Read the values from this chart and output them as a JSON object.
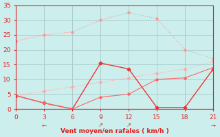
{
  "title": "",
  "xlabel": "Vent moyen/en rafales ( km/h )",
  "ylabel": "",
  "bg_color": "#cceeed",
  "xlim": [
    0,
    21
  ],
  "ylim": [
    0,
    35
  ],
  "xticks": [
    0,
    3,
    6,
    9,
    12,
    15,
    18,
    21
  ],
  "yticks": [
    0,
    5,
    10,
    15,
    20,
    25,
    30,
    35
  ],
  "lines": [
    {
      "x": [
        0,
        3,
        6,
        9,
        12,
        15,
        18,
        21
      ],
      "y": [
        23,
        25,
        26,
        30,
        32.5,
        30.5,
        20,
        17
      ],
      "color": "#ff9999",
      "lw": 0.8,
      "marker": "D",
      "ms": 2,
      "ls": ":"
    },
    {
      "x": [
        0,
        3,
        6,
        9,
        12,
        15,
        18,
        21
      ],
      "y": [
        4.5,
        6,
        7.5,
        9,
        10.5,
        12,
        13.5,
        16
      ],
      "color": "#ffaaaa",
      "lw": 0.8,
      "marker": "D",
      "ms": 2,
      "ls": ":"
    },
    {
      "x": [
        0,
        3,
        6,
        9,
        12,
        15,
        18,
        21
      ],
      "y": [
        4.5,
        2,
        0,
        15.5,
        13.5,
        0.5,
        0.5,
        13.5
      ],
      "color": "#ee3333",
      "lw": 1.0,
      "marker": "D",
      "ms": 2.5,
      "ls": "-"
    },
    {
      "x": [
        0,
        3,
        6,
        9,
        12,
        15,
        18,
        21
      ],
      "y": [
        4.5,
        2,
        0,
        4,
        5,
        10,
        10.5,
        14
      ],
      "color": "#ff6666",
      "lw": 0.8,
      "marker": "D",
      "ms": 2,
      "ls": "-"
    }
  ],
  "arrow_annotations": [
    {
      "x": 3,
      "label": "←",
      "fontsize": 6
    },
    {
      "x": 9,
      "label": "↗",
      "fontsize": 6
    },
    {
      "x": 12,
      "label": "↗",
      "fontsize": 6
    },
    {
      "x": 21,
      "label": "→",
      "fontsize": 6
    }
  ],
  "grid_color": "#aacccc",
  "tick_color": "#dd2222",
  "label_color": "#dd2222",
  "spine_color": "#dd2222"
}
